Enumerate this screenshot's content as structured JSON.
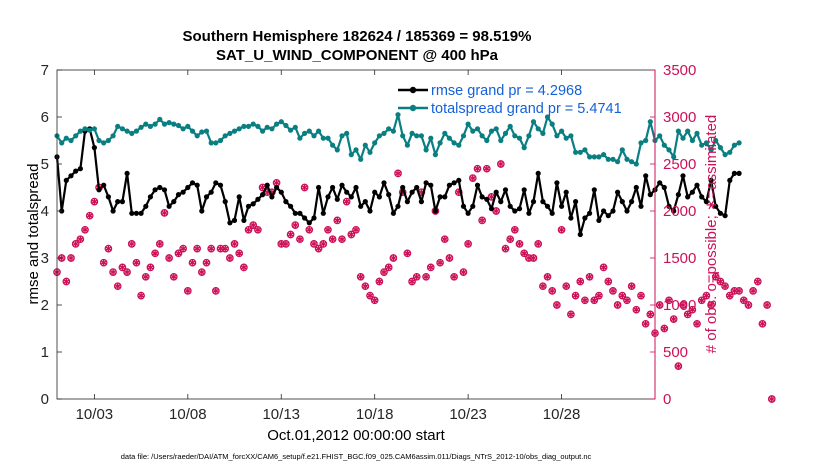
{
  "chart_data": {
    "type": "line",
    "title": "Southern Hemisphere 182624 / 185369 = 98.519%",
    "subtitle": "SAT_U_WIND_COMPONENT @ 400 hPa",
    "xlabel": "Oct.01,2012 00:00:00 start",
    "ylabel_left": "rmse and totalspread",
    "ylabel_right": "# of obs: o=possible; ∗=assimilated",
    "xlim": [
      1,
      33
    ],
    "ylim_left": [
      0,
      7
    ],
    "ylim_right": [
      0,
      3500
    ],
    "x_ticks": [
      3,
      8,
      13,
      18,
      23,
      28
    ],
    "x_tick_labels": [
      "10/03",
      "10/08",
      "10/13",
      "10/18",
      "10/23",
      "10/28"
    ],
    "y_ticks_left": [
      0,
      1,
      2,
      3,
      4,
      5,
      6,
      7
    ],
    "y_ticks_right": [
      0,
      500,
      1000,
      1500,
      2000,
      2500,
      3000,
      3500
    ],
    "legend": [
      {
        "label": "rmse grand pr = 4.2968",
        "color": "#000000"
      },
      {
        "label": "totalspread grand pr = 5.4741",
        "color": "#0a7f82"
      }
    ],
    "colors": {
      "rmse": "#000000",
      "spread": "#0a7f82",
      "obs": "#cc1158",
      "legend_text": "#1560d8"
    },
    "series": [
      {
        "name": "rmse",
        "axis": "left",
        "x_start": 1.0,
        "x_step": 0.25,
        "values": [
          5.15,
          4.0,
          4.65,
          4.75,
          4.85,
          4.9,
          5.7,
          5.75,
          5.35,
          4.45,
          4.55,
          4.3,
          4.0,
          4.2,
          4.2,
          4.8,
          3.95,
          3.95,
          3.95,
          4.1,
          4.3,
          4.45,
          4.5,
          4.45,
          4.1,
          4.2,
          4.35,
          4.4,
          4.5,
          4.6,
          4.55,
          4.0,
          4.3,
          4.4,
          4.6,
          4.55,
          4.2,
          3.75,
          3.8,
          4.3,
          3.8,
          4.1,
          4.15,
          4.25,
          4.35,
          4.55,
          4.3,
          4.5,
          4.4,
          4.2,
          4.1,
          3.95,
          3.95,
          3.85,
          3.75,
          3.85,
          4.5,
          3.95,
          4.3,
          4.5,
          4.25,
          4.55,
          4.4,
          4.3,
          4.5,
          4.1,
          4.2,
          4.0,
          4.4,
          4.3,
          4.6,
          4.35,
          3.95,
          4.1,
          4.5,
          4.2,
          4.4,
          4.5,
          4.2,
          4.6,
          4.55,
          4.0,
          4.3,
          4.3,
          4.55,
          4.6,
          4.65,
          4.1,
          3.95,
          4.1,
          4.55,
          4.3,
          4.25,
          4.05,
          4.4,
          4.2,
          4.45,
          4.1,
          4.0,
          4.05,
          4.45,
          3.95,
          4.2,
          4.8,
          4.2,
          4.1,
          3.95,
          4.6,
          4.1,
          4.4,
          3.85,
          4.2,
          3.5,
          3.85,
          3.95,
          4.45,
          3.8,
          4.0,
          3.9,
          4.0,
          4.4,
          4.2,
          4.0,
          4.2,
          4.5,
          4.1,
          4.75,
          4.35,
          4.45,
          4.6,
          4.5,
          4.1,
          4.0,
          4.35,
          4.75,
          4.3,
          4.4,
          4.55,
          4.3,
          4.2,
          4.65,
          4.1,
          3.95,
          3.9,
          4.65,
          4.8,
          4.8
        ]
      },
      {
        "name": "totalspread",
        "axis": "left",
        "x_start": 1.0,
        "x_step": 0.25,
        "values": [
          5.6,
          5.45,
          5.55,
          5.5,
          5.6,
          5.7,
          5.75,
          5.72,
          5.75,
          5.5,
          5.45,
          5.5,
          5.6,
          5.8,
          5.75,
          5.7,
          5.65,
          5.7,
          5.78,
          5.85,
          5.8,
          5.85,
          5.95,
          5.85,
          5.88,
          5.85,
          5.82,
          5.75,
          5.8,
          5.7,
          5.6,
          5.68,
          5.7,
          5.45,
          5.45,
          5.5,
          5.6,
          5.65,
          5.7,
          5.75,
          5.8,
          5.8,
          5.85,
          5.8,
          5.7,
          5.78,
          5.75,
          5.85,
          5.9,
          5.82,
          5.72,
          5.78,
          5.55,
          5.65,
          5.7,
          5.6,
          5.7,
          5.55,
          5.55,
          5.4,
          5.3,
          5.6,
          5.65,
          5.2,
          5.3,
          5.1,
          5.4,
          5.25,
          5.45,
          5.6,
          5.65,
          5.75,
          5.7,
          6.05,
          5.6,
          5.4,
          5.65,
          5.6,
          5.6,
          5.3,
          5.55,
          5.2,
          5.45,
          5.65,
          5.55,
          5.45,
          5.4,
          5.6,
          5.85,
          5.7,
          5.75,
          5.6,
          5.5,
          5.7,
          5.75,
          5.5,
          5.65,
          5.8,
          5.6,
          5.55,
          5.35,
          5.6,
          5.9,
          5.75,
          5.65,
          6.0,
          5.85,
          5.6,
          5.7,
          5.55,
          5.6,
          5.25,
          5.25,
          5.3,
          5.15,
          5.15,
          5.15,
          5.2,
          5.1,
          5.1,
          5.05,
          5.3,
          5.1,
          5.05,
          5.0,
          5.45,
          5.5,
          5.9,
          5.5,
          5.6,
          5.4,
          5.3,
          5.15,
          5.7,
          5.55,
          5.7,
          5.5,
          5.65,
          5.4,
          5.45,
          5.3,
          5.5,
          5.35,
          5.2,
          5.25,
          5.4,
          5.45
        ]
      },
      {
        "name": "obs_possible",
        "axis": "right",
        "marker": "o",
        "x_start": 1.0,
        "x_step": 0.25,
        "values": [
          1350,
          1500,
          1250,
          1500,
          1650,
          1700,
          1800,
          1950,
          2100,
          2250,
          1450,
          1600,
          1350,
          1200,
          1400,
          1350,
          1650,
          1450,
          1100,
          1300,
          1400,
          1550,
          1650,
          1980,
          1500,
          1300,
          1550,
          1600,
          1150,
          1450,
          1600,
          1350,
          1450,
          1600,
          1150,
          1600,
          1600,
          1500,
          1650,
          1550,
          1400,
          1800,
          1850,
          1800,
          2250,
          2200,
          2200,
          2300,
          1650,
          1650,
          1750,
          1850,
          1700,
          2250,
          1800,
          1650,
          1600,
          1650,
          1800,
          1700,
          1900,
          1700,
          2100,
          1750,
          1800,
          1300,
          1200,
          1100,
          1050,
          1250,
          1350,
          1400,
          1500,
          2400,
          2200,
          1550,
          1250,
          1300,
          2200,
          1300,
          1400,
          2000,
          1450,
          1700,
          1500,
          1300,
          2200,
          1350,
          1650,
          2350,
          2450,
          1900,
          2450,
          2150,
          2000,
          2500,
          1600,
          1700,
          1800,
          1650,
          1550,
          1500,
          1500,
          1650,
          1200,
          1300,
          1150,
          1000,
          1800,
          1200,
          900,
          1100,
          1250,
          1050,
          1300,
          1050,
          1100,
          1400,
          1250,
          1150,
          1000,
          1100,
          1050,
          1200,
          950,
          1100,
          800,
          900,
          700,
          1000,
          750,
          1050,
          850,
          350,
          1000,
          900,
          950,
          800,
          1050,
          1100,
          1000,
          1300,
          1250,
          1200,
          1100,
          1150,
          1150,
          1050,
          1000,
          1150,
          1250,
          800,
          1000,
          0
        ]
      },
      {
        "name": "obs_assimilated",
        "axis": "right",
        "marker": "*",
        "x_start": 1.0,
        "x_step": 0.25,
        "values": [
          1350,
          1500,
          1250,
          1500,
          1650,
          1700,
          1800,
          1950,
          2100,
          2250,
          1450,
          1600,
          1350,
          1200,
          1400,
          1350,
          1650,
          1450,
          1100,
          1300,
          1400,
          1550,
          1650,
          1980,
          1500,
          1300,
          1550,
          1600,
          1150,
          1450,
          1600,
          1350,
          1450,
          1600,
          1150,
          1600,
          1600,
          1500,
          1650,
          1550,
          1400,
          1800,
          1850,
          1800,
          2250,
          2200,
          2200,
          2300,
          1650,
          1650,
          1750,
          1850,
          1700,
          2250,
          1800,
          1650,
          1600,
          1650,
          1800,
          1700,
          1900,
          1700,
          2100,
          1750,
          1800,
          1300,
          1200,
          1100,
          1050,
          1250,
          1350,
          1400,
          1500,
          2400,
          2200,
          1550,
          1250,
          1300,
          2200,
          1300,
          1400,
          2000,
          1450,
          1700,
          1500,
          1300,
          2200,
          1350,
          1650,
          2350,
          2450,
          1900,
          2450,
          2150,
          2000,
          2500,
          1600,
          1700,
          1800,
          1650,
          1550,
          1500,
          1500,
          1650,
          1200,
          1300,
          1150,
          1000,
          1800,
          1200,
          900,
          1100,
          1250,
          1050,
          1300,
          1050,
          1100,
          1400,
          1250,
          1150,
          1000,
          1100,
          1050,
          1200,
          950,
          1100,
          800,
          900,
          700,
          1000,
          750,
          1050,
          850,
          350,
          1000,
          900,
          950,
          800,
          1050,
          1100,
          1000,
          1300,
          1250,
          1200,
          1100,
          1150,
          1150,
          1050,
          1000,
          1150,
          1250,
          800,
          1000,
          0
        ]
      }
    ]
  },
  "footer": "data file: /Users/raeder/DAI/ATM_forcXX/CAM6_setup/f.e21.FHIST_BGC.f09_025.CAM6assim.011/Diags_NTrS_2012-10/obs_diag_output.nc"
}
